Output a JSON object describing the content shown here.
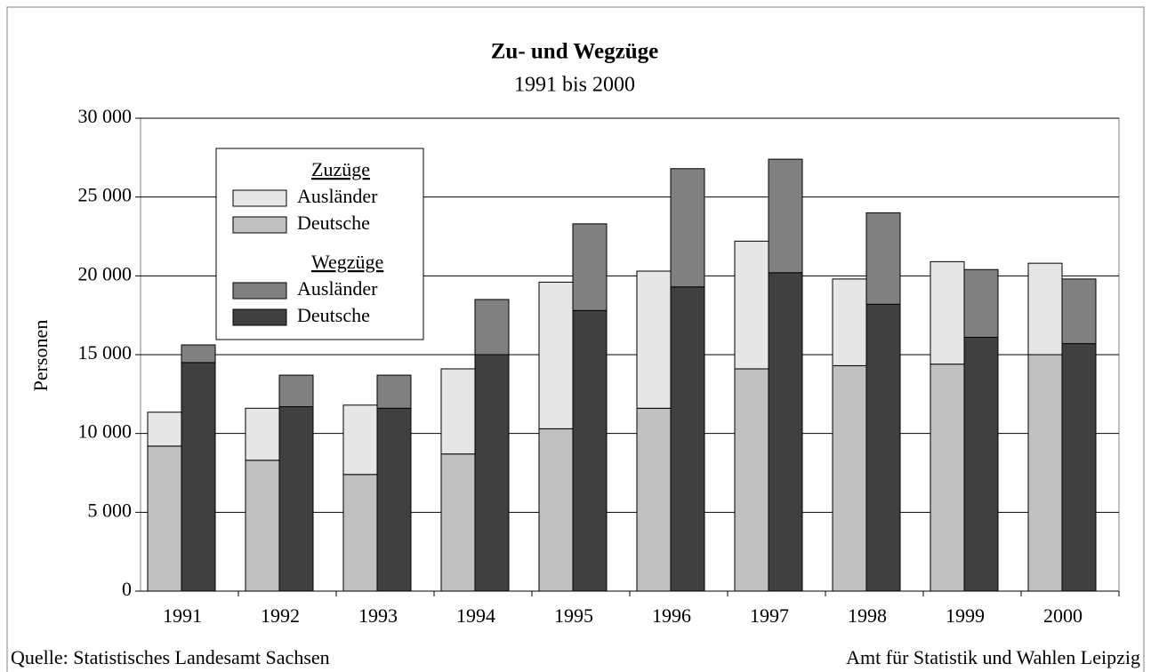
{
  "chart_data": {
    "type": "stacked-grouped-bar",
    "title": "Zu- und Wegzüge",
    "subtitle": "1991 bis 2000",
    "y_label": "Personen",
    "source_left": "Quelle: Statistisches Landesamt Sachsen",
    "source_right": "Amt für Statistik und Wahlen Leipzig",
    "categories": [
      "1991",
      "1992",
      "1993",
      "1994",
      "1995",
      "1996",
      "1997",
      "1998",
      "1999",
      "2000"
    ],
    "series": [
      {
        "name": "Ausländer",
        "stack": "Zuzüge",
        "color": "#e6e6e6",
        "values": [
          2150,
          3300,
          4400,
          5400,
          9300,
          8700,
          8100,
          5500,
          6500,
          5800
        ]
      },
      {
        "name": "Deutsche",
        "stack": "Zuzüge",
        "color": "#c0c0c0",
        "values": [
          9200,
          8300,
          7400,
          8700,
          10300,
          11600,
          14100,
          14300,
          14400,
          15000
        ]
      },
      {
        "name": "Ausländer",
        "stack": "Wegzüge",
        "color": "#808080",
        "values": [
          1120,
          2000,
          2100,
          3500,
          5500,
          7500,
          7200,
          5800,
          4300,
          4100
        ]
      },
      {
        "name": "Deutsche",
        "stack": "Wegzüge",
        "color": "#404040",
        "values": [
          14500,
          11700,
          11600,
          15000,
          17800,
          19300,
          20200,
          18200,
          16100,
          15700
        ]
      }
    ],
    "ylim": [
      0,
      30000
    ],
    "yticks": [
      0,
      {
        "value": 5000,
        "label": "5 000"
      },
      {
        "value": 10000,
        "label": "10 000"
      },
      {
        "value": 15000,
        "label": "15 000"
      },
      {
        "value": 20000,
        "label": "20 000"
      },
      {
        "value": 25000,
        "label": "25 000"
      },
      {
        "value": 30000,
        "label": "30 000"
      }
    ],
    "grid": true
  }
}
